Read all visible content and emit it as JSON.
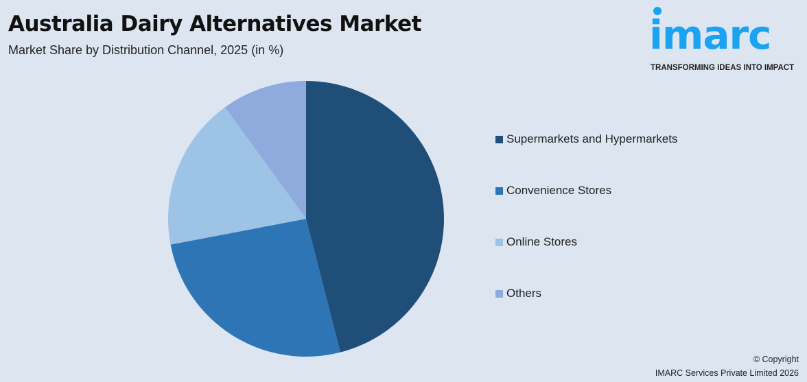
{
  "header": {
    "title": "Australia Dairy Alternatives Market",
    "subtitle": "Market Share by Distribution Channel, 2025 (in %)"
  },
  "logo": {
    "word": "imarc",
    "tagline": "TRANSFORMING IDEAS INTO IMPACT",
    "color": "#1aa3f0"
  },
  "chart_data": {
    "type": "pie",
    "title": "Australia Dairy Alternatives Market",
    "subtitle": "Market Share by Distribution Channel, 2025 (in %)",
    "start_angle": "12 o'clock, clockwise",
    "legend_position": "right",
    "categories": [
      "Supermarkets and Hypermarkets",
      "Convenience Stores",
      "Online Stores",
      "Others"
    ],
    "values": [
      46,
      26,
      18,
      10
    ],
    "colors": [
      "#1f4e79",
      "#2e75b6",
      "#9dc3e6",
      "#8faadc"
    ]
  },
  "footer": {
    "copyright": "© Copyright",
    "company": "IMARC Services Private Limited 2026"
  }
}
